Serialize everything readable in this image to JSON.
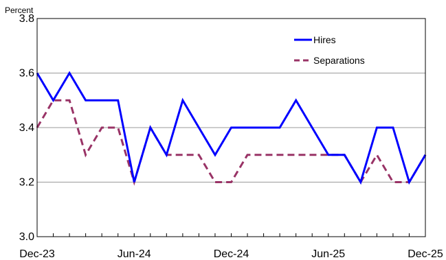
{
  "chart_data": {
    "type": "line",
    "title": "",
    "xlabel": "",
    "ylabel": "Percent",
    "ylim": [
      3.0,
      3.8
    ],
    "yticks": [
      "3.0",
      "3.2",
      "3.4",
      "3.6",
      "3.8"
    ],
    "grid": true,
    "legend_position": "top-right",
    "x": [
      "Dec-23",
      "Jan-24",
      "Feb-24",
      "Mar-24",
      "Apr-24",
      "May-24",
      "Jun-24",
      "Jul-24",
      "Aug-24",
      "Sep-24",
      "Oct-24",
      "Nov-24",
      "Dec-24",
      "Jan-25",
      "Feb-25",
      "Mar-25",
      "Apr-25",
      "May-25",
      "Jun-25",
      "Jul-25",
      "Aug-25",
      "Sep-25",
      "Oct-25",
      "Nov-25",
      "Dec-25"
    ],
    "xtick_labels": [
      "Dec-23",
      "Jun-24",
      "Dec-24",
      "Jun-25",
      "Dec-25"
    ],
    "series": [
      {
        "name": "Hires",
        "color": "#0000ff",
        "dash": "solid",
        "values": [
          3.6,
          3.5,
          3.6,
          3.5,
          3.5,
          3.5,
          3.2,
          3.4,
          3.3,
          3.5,
          3.4,
          3.3,
          3.4,
          3.4,
          3.4,
          3.4,
          3.5,
          3.4,
          3.3,
          3.3,
          3.2,
          3.4,
          3.4,
          3.2,
          3.3
        ]
      },
      {
        "name": "Separations",
        "color": "#993366",
        "dash": "dashed",
        "values": [
          3.4,
          3.5,
          3.5,
          3.3,
          3.4,
          3.4,
          3.2,
          3.4,
          3.3,
          3.3,
          3.3,
          3.2,
          3.2,
          3.3,
          3.3,
          3.3,
          3.3,
          3.3,
          3.3,
          3.3,
          3.2,
          3.3,
          3.2,
          3.2,
          3.3
        ]
      }
    ]
  }
}
